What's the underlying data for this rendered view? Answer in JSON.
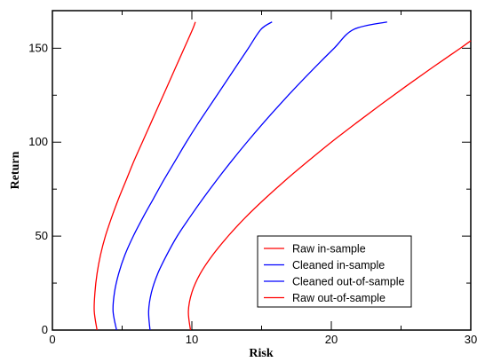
{
  "chart_data": {
    "type": "line",
    "title": "",
    "xlabel": "Risk",
    "ylabel": "Return",
    "xlim": [
      0,
      30
    ],
    "ylim": [
      0,
      170
    ],
    "xticks": [
      0,
      10,
      20,
      30
    ],
    "yticks": [
      0,
      50,
      100,
      150
    ],
    "grid": false,
    "legend_position": "bottom-right",
    "series": [
      {
        "name": "Raw in-sample",
        "color": "#ff0000",
        "points": [
          [
            3.2,
            0
          ],
          [
            3.0,
            10
          ],
          [
            3.05,
            20
          ],
          [
            3.2,
            30
          ],
          [
            3.45,
            40
          ],
          [
            3.8,
            50
          ],
          [
            4.25,
            60
          ],
          [
            4.75,
            70
          ],
          [
            5.3,
            80
          ],
          [
            5.85,
            90
          ],
          [
            6.45,
            100
          ],
          [
            7.05,
            110
          ],
          [
            7.65,
            120
          ],
          [
            8.25,
            130
          ],
          [
            8.85,
            140
          ],
          [
            9.45,
            150
          ],
          [
            10.05,
            160
          ],
          [
            10.25,
            164
          ]
        ]
      },
      {
        "name": "Cleaned in-sample",
        "color": "#0000ff",
        "points": [
          [
            4.6,
            0
          ],
          [
            4.35,
            10
          ],
          [
            4.45,
            20
          ],
          [
            4.75,
            30
          ],
          [
            5.2,
            40
          ],
          [
            5.8,
            50
          ],
          [
            6.5,
            60
          ],
          [
            7.25,
            70
          ],
          [
            8.0,
            80
          ],
          [
            8.8,
            90
          ],
          [
            9.6,
            100
          ],
          [
            10.45,
            110
          ],
          [
            11.35,
            120
          ],
          [
            12.25,
            130
          ],
          [
            13.15,
            140
          ],
          [
            14.05,
            150
          ],
          [
            14.95,
            160
          ],
          [
            15.75,
            164
          ]
        ]
      },
      {
        "name": "Cleaned out-of-sample",
        "color": "#0000ff",
        "points": [
          [
            7.0,
            0
          ],
          [
            6.9,
            10
          ],
          [
            7.1,
            20
          ],
          [
            7.55,
            30
          ],
          [
            8.2,
            40
          ],
          [
            8.95,
            50
          ],
          [
            9.85,
            60
          ],
          [
            10.8,
            70
          ],
          [
            11.8,
            80
          ],
          [
            12.85,
            90
          ],
          [
            13.95,
            100
          ],
          [
            15.1,
            110
          ],
          [
            16.3,
            120
          ],
          [
            17.55,
            130
          ],
          [
            18.85,
            140
          ],
          [
            20.2,
            150
          ],
          [
            21.6,
            160
          ],
          [
            24.0,
            164
          ]
        ]
      },
      {
        "name": "Raw out-of-sample",
        "color": "#ff0000",
        "points": [
          [
            9.9,
            0
          ],
          [
            9.75,
            10
          ],
          [
            10.0,
            20
          ],
          [
            10.6,
            30
          ],
          [
            11.5,
            40
          ],
          [
            12.6,
            50
          ],
          [
            13.85,
            60
          ],
          [
            15.25,
            70
          ],
          [
            16.75,
            80
          ],
          [
            18.35,
            90
          ],
          [
            20.0,
            100
          ],
          [
            21.75,
            110
          ],
          [
            23.55,
            120
          ],
          [
            25.4,
            130
          ],
          [
            27.3,
            140
          ],
          [
            29.25,
            150
          ],
          [
            30.0,
            154
          ]
        ]
      }
    ]
  }
}
